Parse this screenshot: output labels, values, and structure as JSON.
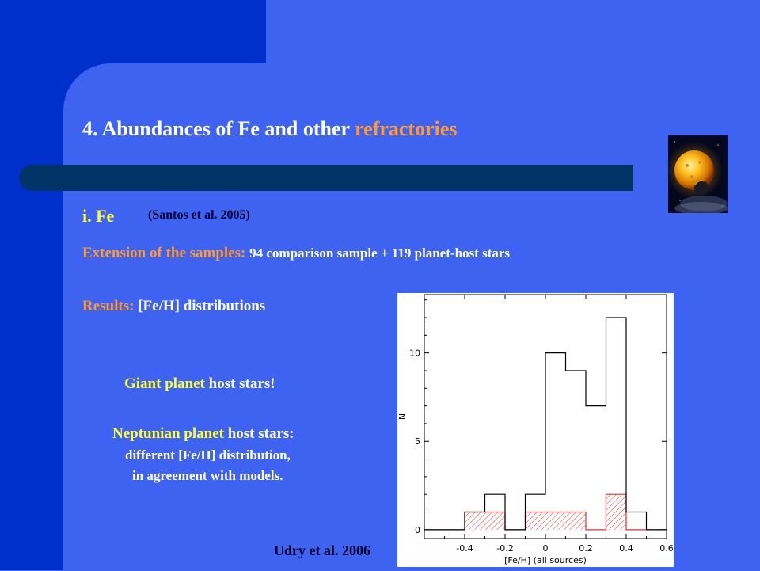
{
  "slide": {
    "title_main": "4. Abundances of Fe and other ",
    "title_accent": "refractories",
    "section": "i. Fe",
    "reference": "(Santos et al. 2005)",
    "extension_label": "Extension of the samples:",
    "extension_text": "94 comparison sample +  119 planet-host stars",
    "results_label": "Results:",
    "results_text": "[Fe/H] distributions",
    "giant_highlight": "Giant planet",
    "giant_rest": " host stars!",
    "neptunian_highlight": "Neptunian planet",
    "neptunian_rest": " host stars:",
    "neptunian_line2": "different [Fe/H] distribution,",
    "neptunian_line3": "in agreement with models.",
    "credit": "Udry et al. 2006"
  },
  "colors": {
    "background": "#3d63f0",
    "dark_blue": "#0030cc",
    "bar": "#003366",
    "accent_orange": "#ff9933",
    "highlight_yellow": "#ffff33",
    "histogram_giant": "#000000",
    "histogram_neptunian": "#e03030"
  },
  "chart_data": {
    "type": "bar",
    "xlabel": "[Fe/H] (all sources)",
    "ylabel": "N",
    "xlim": [
      -0.6,
      0.6
    ],
    "ylim": [
      -0.5,
      13.3
    ],
    "x_ticks": [
      "-0.4",
      "-0.2",
      "0",
      "0.2",
      "0.4",
      "0.6"
    ],
    "y_ticks": [
      "0",
      "5",
      "10"
    ],
    "bin_edges": [
      -0.5,
      -0.4,
      -0.3,
      -0.2,
      -0.1,
      0.0,
      0.1,
      0.2,
      0.3,
      0.4,
      0.5
    ],
    "series": [
      {
        "values": [
          0,
          1,
          2,
          0,
          2,
          10,
          9,
          7,
          12,
          1,
          0
        ]
      },
      {
        "values": [
          0,
          1,
          1,
          0,
          1,
          1,
          1,
          0,
          2,
          0,
          0
        ]
      }
    ]
  }
}
